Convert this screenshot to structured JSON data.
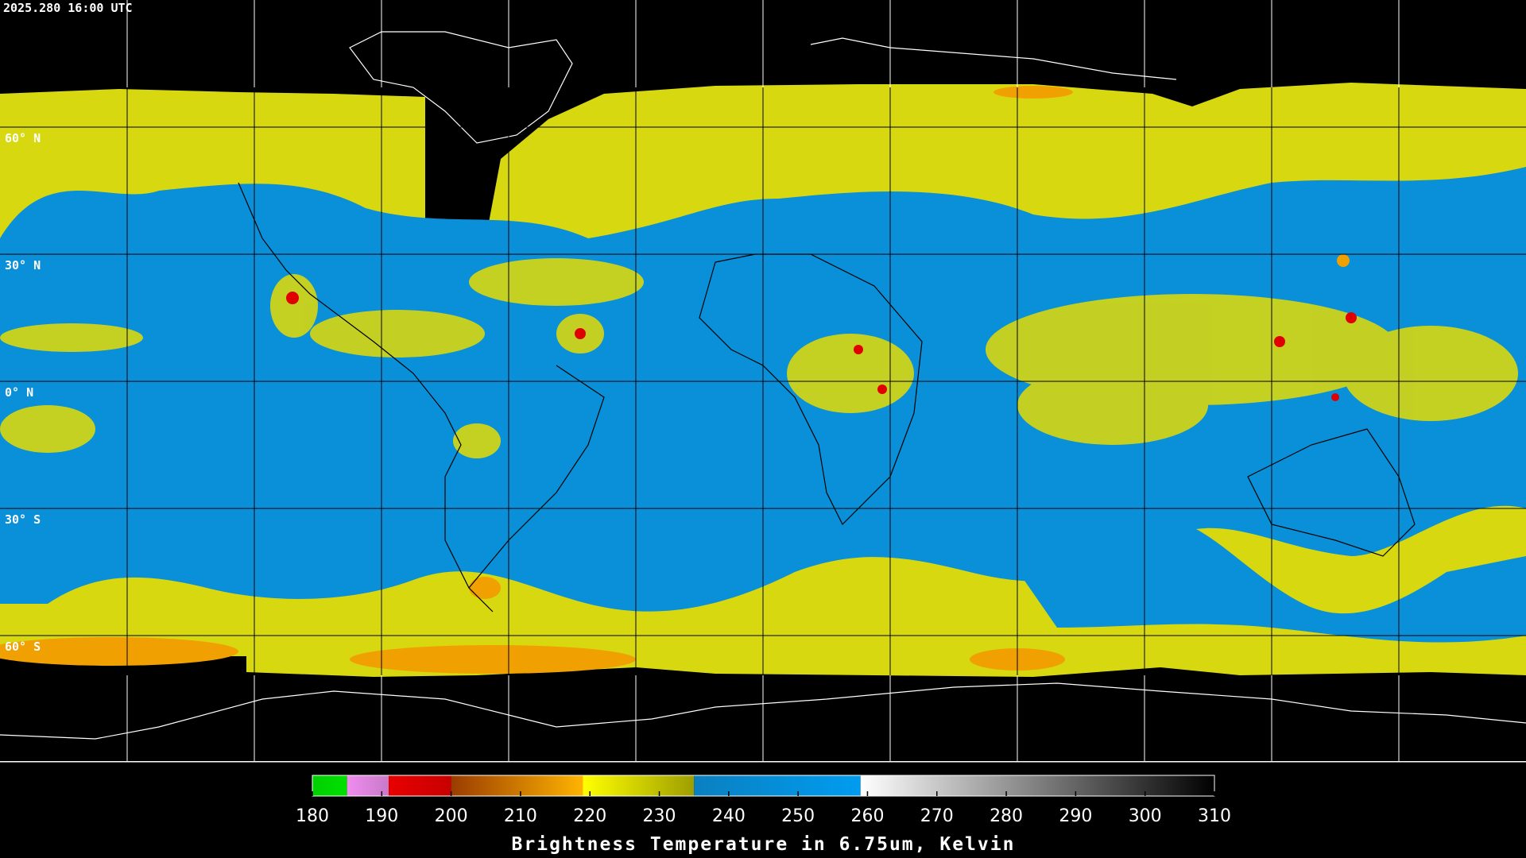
{
  "header": {
    "timestamp": "2025.280 16:00 UTC"
  },
  "map": {
    "lat_labels": [
      "60° N",
      "30° N",
      "0° N",
      "30° S",
      "60° S"
    ]
  },
  "colorbar": {
    "title": "Brightness Temperature in 6.75um, Kelvin",
    "range": [
      180,
      310
    ],
    "ticks": [
      180,
      190,
      200,
      210,
      220,
      230,
      240,
      250,
      260,
      270,
      280,
      290,
      300,
      310
    ],
    "segments": [
      {
        "from": 180,
        "to": 185,
        "colors": [
          "#00d000",
          "#00e000"
        ]
      },
      {
        "from": 185,
        "to": 191,
        "colors": [
          "#f08cf0",
          "#c87ac8"
        ]
      },
      {
        "from": 191,
        "to": 200,
        "colors": [
          "#e80000",
          "#c80000"
        ]
      },
      {
        "from": 200,
        "to": 219,
        "colors": [
          "#9a3c00",
          "#ffb400"
        ]
      },
      {
        "from": 219,
        "to": 235,
        "colors": [
          "#ffff00",
          "#9e9e00"
        ]
      },
      {
        "from": 235,
        "to": 259,
        "colors": [
          "#0a80c0",
          "#009cf0"
        ]
      },
      {
        "from": 259,
        "to": 310,
        "colors": [
          "#ffffff",
          "#000000"
        ]
      }
    ]
  }
}
